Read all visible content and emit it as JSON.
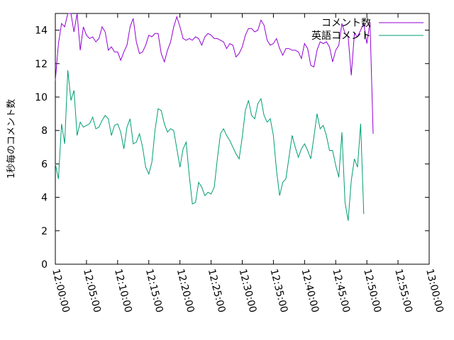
{
  "chart_data": {
    "type": "line",
    "title": "",
    "xlabel": "",
    "ylabel": "1秒毎のコメント数",
    "x_range": [
      "12:00:00",
      "13:00:00"
    ],
    "ylim": [
      0,
      15
    ],
    "y_ticks": [
      0,
      2,
      4,
      6,
      8,
      10,
      12,
      14
    ],
    "x_ticks": [
      "12:00:00",
      "12:05:00",
      "12:10:00",
      "12:15:00",
      "12:20:00",
      "12:25:00",
      "12:30:00",
      "12:35:00",
      "12:40:00",
      "12:45:00",
      "12:50:00",
      "12:55:00",
      "13:00:00"
    ],
    "grid": false,
    "legend_position": "top-right",
    "x_step_seconds": 30,
    "series": [
      {
        "name": "コメント数",
        "color": "#9400d3",
        "values": [
          11.0,
          13.2,
          14.4,
          14.2,
          15.0,
          15.0,
          13.9,
          15.0,
          12.8,
          14.2,
          13.7,
          13.5,
          13.6,
          13.3,
          13.5,
          14.2,
          13.9,
          12.8,
          13.0,
          12.7,
          12.7,
          12.2,
          12.7,
          13.1,
          14.2,
          14.7,
          13.3,
          12.6,
          12.7,
          13.1,
          13.7,
          13.6,
          13.8,
          13.8,
          12.6,
          12.1,
          12.8,
          13.3,
          14.2,
          14.8,
          14.2,
          13.5,
          13.4,
          13.5,
          13.4,
          13.6,
          13.5,
          13.1,
          13.6,
          13.8,
          13.7,
          13.5,
          13.5,
          13.4,
          13.3,
          12.9,
          13.2,
          13.1,
          12.4,
          12.6,
          13.0,
          13.7,
          14.1,
          14.1,
          13.9,
          14.0,
          14.6,
          14.3,
          13.4,
          13.1,
          13.2,
          13.5,
          12.9,
          12.5,
          12.9,
          12.9,
          12.8,
          12.8,
          12.7,
          12.3,
          13.2,
          12.9,
          11.9,
          11.8,
          12.8,
          13.3,
          13.2,
          13.3,
          13.0,
          12.1,
          12.8,
          13.1,
          14.4,
          13.8,
          13.6,
          11.3,
          13.8,
          13.6,
          14.0,
          14.4,
          13.2,
          14.5,
          7.8
        ]
      },
      {
        "name": "英語コメント",
        "color": "#009e73",
        "values": [
          6.0,
          5.1,
          8.4,
          7.2,
          11.6,
          9.8,
          10.4,
          7.7,
          8.5,
          8.2,
          8.3,
          8.4,
          8.8,
          8.1,
          8.2,
          8.6,
          8.9,
          8.7,
          7.7,
          8.3,
          8.4,
          7.9,
          6.9,
          8.2,
          8.7,
          7.2,
          7.3,
          7.8,
          7.0,
          5.8,
          5.4,
          6.1,
          8.0,
          9.3,
          9.2,
          8.4,
          7.9,
          8.1,
          8.0,
          6.9,
          5.8,
          6.9,
          7.3,
          5.3,
          3.6,
          3.7,
          4.9,
          4.6,
          4.1,
          4.3,
          4.2,
          4.6,
          6.3,
          7.8,
          8.1,
          7.7,
          7.4,
          7.0,
          6.6,
          6.3,
          7.6,
          9.2,
          9.8,
          8.9,
          8.7,
          9.6,
          9.9,
          8.9,
          8.5,
          8.7,
          7.7,
          5.6,
          4.1,
          4.9,
          5.1,
          6.4,
          7.7,
          7.0,
          6.4,
          6.9,
          7.2,
          6.8,
          6.3,
          7.6,
          9.0,
          8.1,
          8.3,
          7.7,
          6.8,
          6.8,
          5.9,
          5.2,
          7.9,
          3.7,
          2.6,
          5.0,
          6.3,
          5.8,
          8.4,
          3.0
        ]
      }
    ]
  }
}
